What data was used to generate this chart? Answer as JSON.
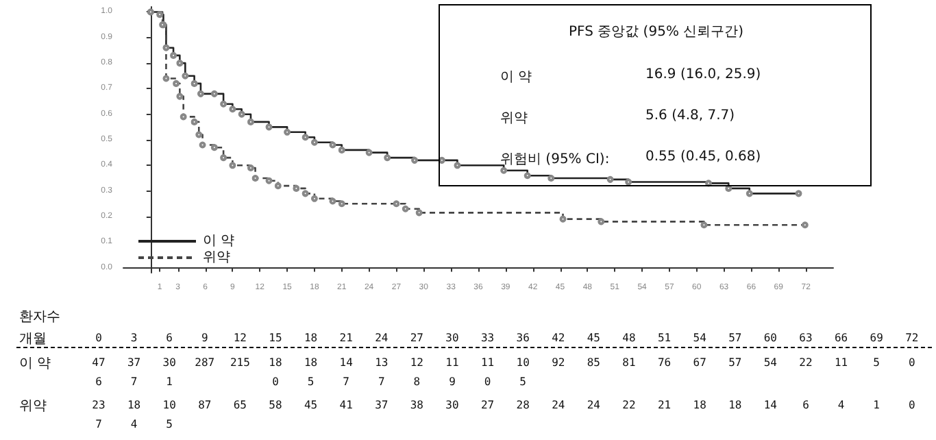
{
  "chart_data": {
    "type": "step",
    "xlim": [
      -3,
      75
    ],
    "ylim": [
      -0.02,
      1.02
    ],
    "xticks": [
      1,
      3,
      6,
      9,
      12,
      15,
      18,
      21,
      24,
      27,
      30,
      33,
      36,
      39,
      42,
      45,
      48,
      51,
      54,
      57,
      60,
      63,
      66,
      69,
      72
    ],
    "yticks": [
      {
        "value": 0,
        "label": "0.0"
      },
      {
        "value": 0.1,
        "label": "0.1"
      },
      {
        "value": 0.2,
        "label": "0.2"
      },
      {
        "value": 0.3,
        "label": "0.3"
      },
      {
        "value": 0.4,
        "label": "0.4"
      },
      {
        "value": 0.5,
        "label": "0.5"
      },
      {
        "value": 0.6,
        "label": "0.6"
      },
      {
        "value": 0.7,
        "label": "0.7"
      },
      {
        "value": 0.8,
        "label": "0.8"
      },
      {
        "value": 0.9,
        "label": "0.9"
      },
      {
        "value": 1,
        "label": "1.0"
      }
    ],
    "grid": false,
    "legend": "bottom left",
    "marker": "circle",
    "series": [
      {
        "name": "이 약",
        "color": "#222222",
        "line_style": "solid",
        "x": [
          0,
          1,
          1.4,
          1.7,
          2.5,
          3.2,
          3.8,
          4.8,
          5.5,
          7,
          8,
          9,
          10,
          11,
          13,
          15,
          17,
          18,
          20,
          21,
          24,
          26,
          29,
          32,
          33.7,
          38.8,
          41.4,
          44,
          50.5,
          52.5,
          61.3,
          63.5,
          65.8,
          71.2
        ],
        "values": [
          1,
          0.99,
          0.95,
          0.86,
          0.83,
          0.8,
          0.75,
          0.72,
          0.68,
          0.68,
          0.64,
          0.62,
          0.6,
          0.57,
          0.55,
          0.53,
          0.51,
          0.49,
          0.48,
          0.46,
          0.45,
          0.43,
          0.42,
          0.42,
          0.4,
          0.38,
          0.36,
          0.35,
          0.345,
          0.335,
          0.33,
          0.31,
          0.29,
          0.29
        ]
      },
      {
        "name": "위약",
        "color": "#444444",
        "line_style": "dashed",
        "x": [
          0,
          1.3,
          1.7,
          2.8,
          3.2,
          3.6,
          4.8,
          5.3,
          5.7,
          7,
          8,
          9,
          11,
          11.5,
          13,
          14,
          16,
          17,
          18,
          20,
          21,
          27,
          28,
          29.5,
          45.3,
          49.5,
          60.8,
          71.9
        ],
        "values": [
          1,
          0.95,
          0.74,
          0.72,
          0.67,
          0.59,
          0.57,
          0.52,
          0.48,
          0.47,
          0.43,
          0.4,
          0.39,
          0.35,
          0.34,
          0.32,
          0.31,
          0.29,
          0.27,
          0.26,
          0.25,
          0.25,
          0.23,
          0.215,
          0.19,
          0.18,
          0.167,
          0.167
        ]
      }
    ],
    "annotations": [
      "\tPFS 중앙값 (95% 신뢰구간)",
      "이 약\t16.9 (16.0, 25.9)",
      "위약\t5.6 (4.8, 7.7)",
      "위험비 (95% CI):\t0.55 (0.45, 0.68)",
      "환자수",
      "개월\t0\t3\t6\t9\t12\t15\t18\t21\t24\t27\t30\t33\t36\t42\t45\t48\t51\t54\t57\t60\t63\t66\t69\t72",
      "이 약\t47\t37\t30\t287\t215\t18\t18\t14\t13\t12\t11\t11\t10\t92\t85\t81\t76\t67\t57\t54\t22\t11\t5\t0",
      "\t6\t7\t1\t\t\t0\t5\t7\t7\t8\t9\t0\t5",
      "위약\t23\t18\t10\t87\t65\t58\t45\t41\t37\t38\t30\t27\t28\t24\t24\t22\t21\t18\t18\t14\t6\t4\t1\t0",
      "\t7\t4\t5"
    ]
  }
}
